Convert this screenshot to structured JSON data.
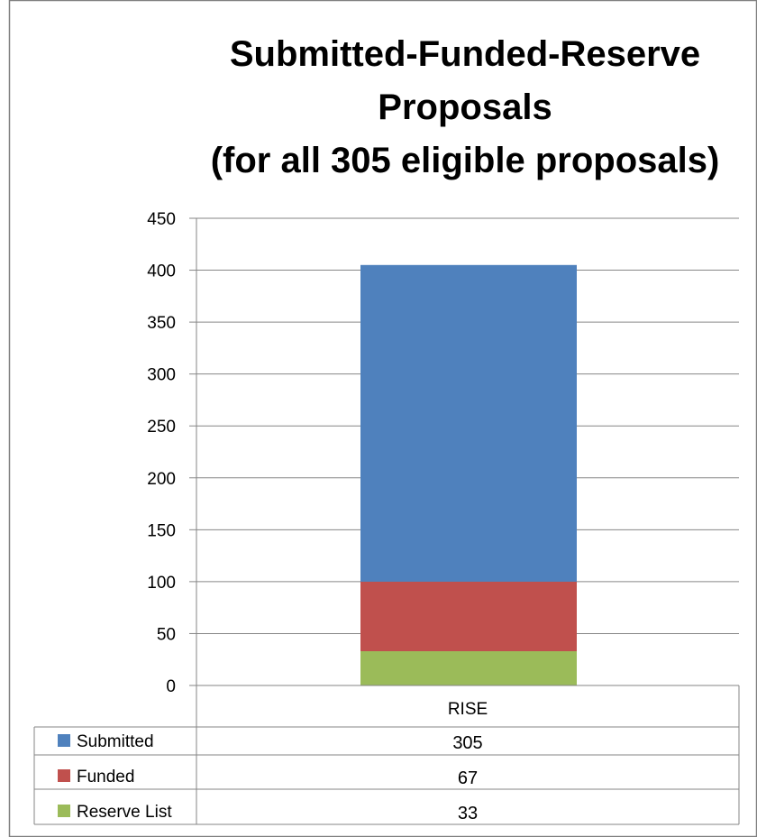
{
  "chart_data": {
    "type": "bar",
    "stacked": true,
    "title_lines": [
      "Submitted-Funded-Reserve",
      "Proposals",
      "(for all 305 eligible proposals)"
    ],
    "categories": [
      "RISE"
    ],
    "series": [
      {
        "name": "Submitted",
        "values": [
          305
        ],
        "color": "#4f81bd"
      },
      {
        "name": "Funded",
        "values": [
          67
        ],
        "color": "#c0504d"
      },
      {
        "name": "Reserve List",
        "values": [
          33
        ],
        "color": "#9bbb59"
      }
    ],
    "ylim": [
      0,
      450
    ],
    "y_ticks": [
      0,
      50,
      100,
      150,
      200,
      250,
      300,
      350,
      400,
      450
    ],
    "grid": true,
    "legend": "data-table"
  }
}
